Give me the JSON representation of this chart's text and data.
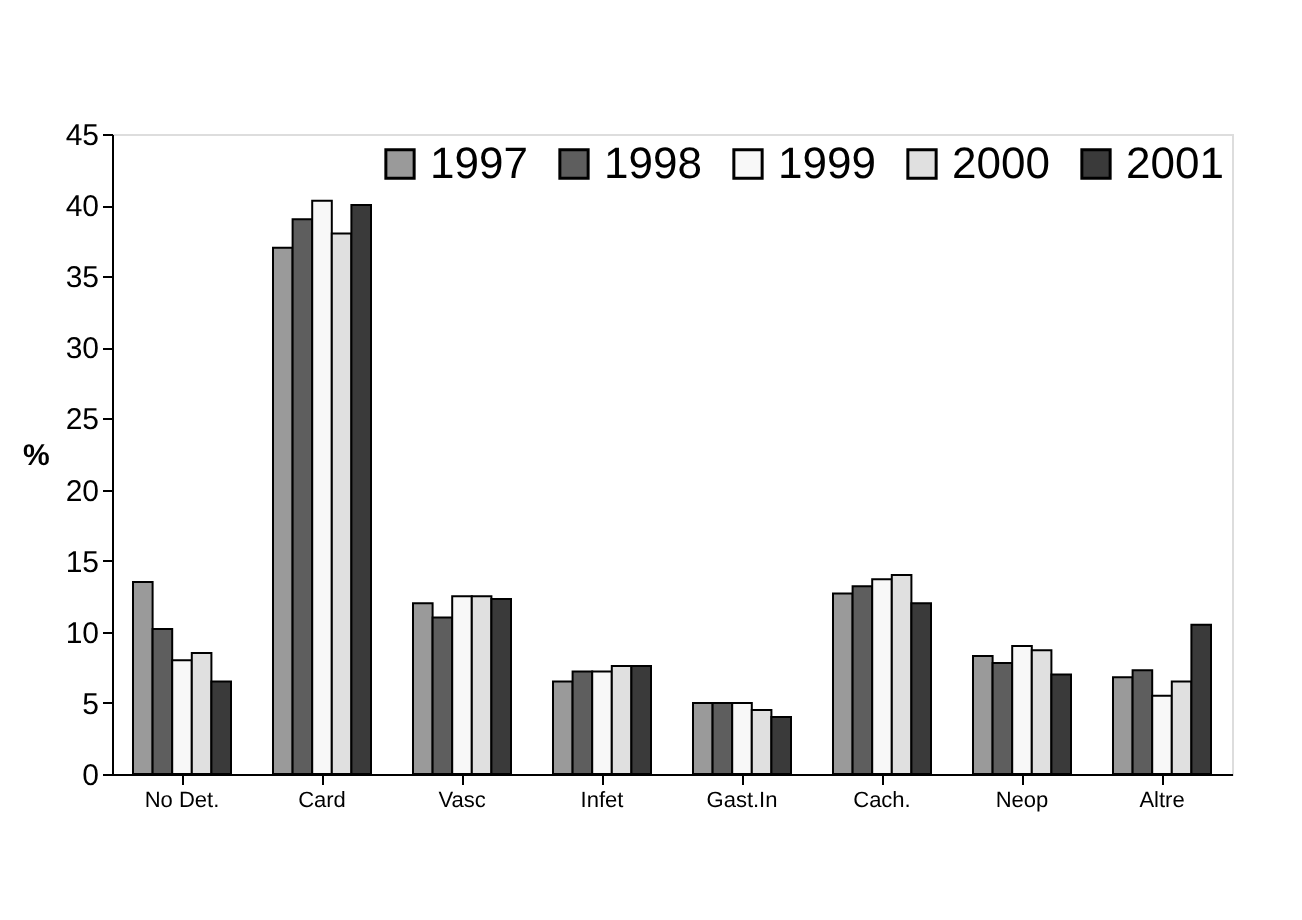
{
  "chart_data": {
    "type": "bar",
    "ylabel": "%",
    "categories": [
      "No Det.",
      "Card",
      "Vasc",
      "Infet",
      "Gast.In",
      "Cach.",
      "Neop",
      "Altre"
    ],
    "series": [
      {
        "name": "1997",
        "color": "#9a9a9a",
        "values": [
          13.5,
          37,
          12,
          6.5,
          5,
          12.7,
          8.3,
          6.8
        ]
      },
      {
        "name": "1998",
        "color": "#5e5e5e",
        "values": [
          10.2,
          39,
          11,
          7.2,
          5,
          13.2,
          7.8,
          7.3
        ]
      },
      {
        "name": "1999",
        "color": "#f8f8f8",
        "values": [
          8,
          40.3,
          12.5,
          7.2,
          5,
          13.7,
          9,
          5.5
        ]
      },
      {
        "name": "2000",
        "color": "#e0e0e0",
        "values": [
          8.5,
          38,
          12.5,
          7.6,
          4.5,
          14,
          8.7,
          6.5
        ]
      },
      {
        "name": "2001",
        "color": "#3a3a3a",
        "values": [
          6.5,
          40,
          12.3,
          7.6,
          4,
          12,
          7,
          10.5
        ]
      }
    ],
    "ylim": [
      0,
      45
    ],
    "yticks": [
      0,
      5,
      10,
      15,
      20,
      25,
      30,
      35,
      40,
      45
    ],
    "grid": false,
    "legend": "top right"
  }
}
